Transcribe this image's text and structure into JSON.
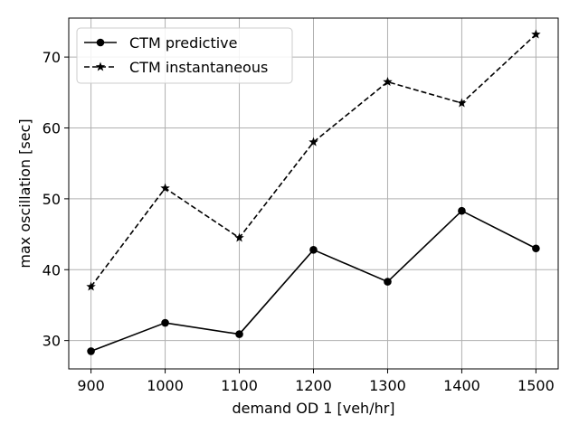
{
  "chart_data": {
    "type": "line",
    "title": "",
    "xlabel": "demand OD 1 [veh/hr]",
    "ylabel": "max oscillation [sec]",
    "x": [
      900,
      1000,
      1100,
      1200,
      1300,
      1400,
      1500
    ],
    "xlim": [
      870,
      1530
    ],
    "ylim": [
      26,
      75.5
    ],
    "xticks": [
      900,
      1000,
      1100,
      1200,
      1300,
      1400,
      1500
    ],
    "yticks": [
      30,
      40,
      50,
      60,
      70
    ],
    "grid": true,
    "legend_position": "top-left",
    "series": [
      {
        "name": "CTM predictive",
        "values": [
          28.5,
          32.5,
          30.9,
          42.8,
          38.3,
          48.3,
          43.0
        ],
        "color": "#000000",
        "line_style": "solid",
        "marker": "circle"
      },
      {
        "name": "CTM instantaneous",
        "values": [
          37.6,
          51.5,
          44.5,
          58.0,
          66.5,
          63.5,
          73.2
        ],
        "color": "#000000",
        "line_style": "dashed",
        "marker": "star"
      }
    ]
  }
}
